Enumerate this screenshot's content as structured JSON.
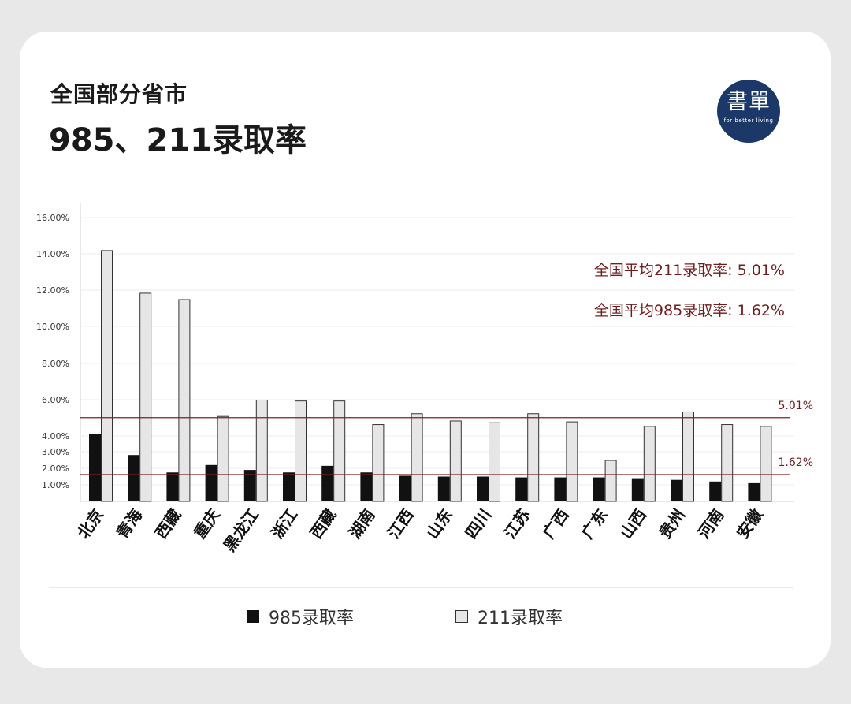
{
  "header": {
    "line1": "全国部分省市",
    "line2": "985、211录取率"
  },
  "logo": {
    "main": "書單",
    "sub": "for better living"
  },
  "colors": {
    "bar985": "#111111",
    "bar211": "#e6e6e6",
    "bar211_stroke": "#333333",
    "reference": "#7a2222",
    "annotation": "#6b1f1f"
  },
  "chart_data": {
    "type": "bar",
    "categories": [
      "北京",
      "青海",
      "西藏",
      "重庆",
      "黑龙江",
      "浙江",
      "西藏",
      "湖南",
      "江西",
      "山东",
      "四川",
      "江苏",
      "广西",
      "广东",
      "山西",
      "贵州",
      "河南",
      "安徽"
    ],
    "series": [
      {
        "name": "985录取率",
        "values": [
          4.1,
          2.8,
          1.75,
          2.2,
          1.9,
          1.75,
          2.15,
          1.75,
          1.55,
          1.5,
          1.5,
          1.45,
          1.45,
          1.45,
          1.4,
          1.3,
          1.2,
          1.1
        ]
      },
      {
        "name": "211录取率",
        "values": [
          14.2,
          11.85,
          11.5,
          5.1,
          6.0,
          5.95,
          5.95,
          4.65,
          5.25,
          4.85,
          4.75,
          5.25,
          4.8,
          2.5,
          4.55,
          5.35,
          4.65,
          4.55
        ]
      }
    ],
    "y_ticks": [
      "16.00%",
      "14.00%",
      "12.00%",
      "10.00%",
      "8.00%",
      "6.00%",
      "4.00%",
      "3.00%",
      "2.00%",
      "1.00%"
    ],
    "y_tick_values": [
      16,
      14,
      12,
      10,
      8,
      6,
      4,
      3,
      2,
      1
    ],
    "ylim": [
      0,
      16.8
    ],
    "reference_lines": [
      {
        "value": 5.01,
        "label": "5.01%"
      },
      {
        "value": 1.62,
        "label": "1.62%"
      }
    ],
    "annotations": [
      "全国平均211录取率: 5.01%",
      "全国平均985录取率: 1.62%"
    ],
    "legend": [
      "985录取率",
      "211录取率"
    ],
    "legend_position": "bottom-center"
  }
}
